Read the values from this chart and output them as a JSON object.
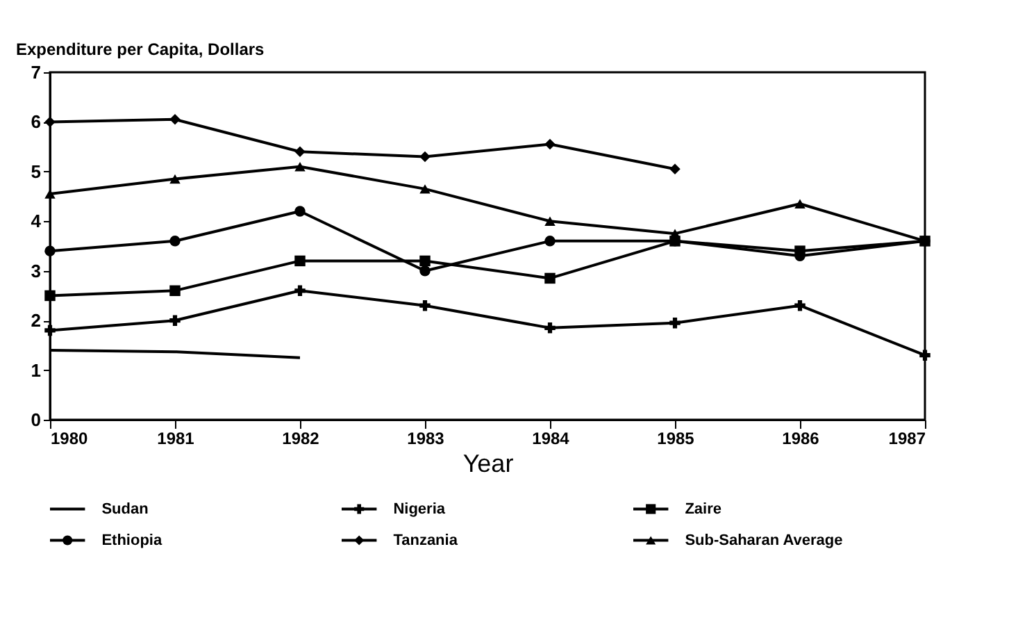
{
  "chart_data": {
    "type": "line",
    "ylabel": "Expenditure per Capita, Dollars",
    "xlabel": "Year",
    "x": [
      1980,
      1981,
      1982,
      1983,
      1984,
      1985,
      1986,
      1987
    ],
    "xlim": [
      1980,
      1987
    ],
    "xticks": [
      1980,
      1981,
      1982,
      1983,
      1984,
      1985,
      1986,
      1987
    ],
    "ylim": [
      0,
      7
    ],
    "yticks": [
      0,
      1,
      2,
      3,
      4,
      5,
      6,
      7
    ],
    "grid": false,
    "legend": "bottom",
    "series": [
      {
        "name": "Sudan",
        "color": "#000000",
        "marker": "none",
        "values": [
          1.4,
          1.37,
          1.25,
          null,
          null,
          null,
          null,
          null
        ]
      },
      {
        "name": "Nigeria",
        "color": "#000000",
        "marker": "cross",
        "values": [
          1.8,
          2.0,
          2.6,
          2.3,
          1.85,
          1.95,
          2.3,
          1.3
        ]
      },
      {
        "name": "Zaire",
        "color": "#000000",
        "marker": "square",
        "values": [
          2.5,
          2.6,
          3.2,
          3.2,
          2.85,
          3.6,
          3.4,
          3.6
        ]
      },
      {
        "name": "Ethiopia",
        "color": "#000000",
        "marker": "circle",
        "values": [
          3.4,
          3.6,
          4.2,
          3.0,
          3.6,
          3.6,
          3.3,
          3.6
        ]
      },
      {
        "name": "Tanzania",
        "color": "#000000",
        "marker": "diamond",
        "values": [
          6.0,
          6.05,
          5.4,
          5.3,
          5.55,
          5.05,
          null,
          null
        ]
      },
      {
        "name": "Sub-Saharan Average",
        "color": "#000000",
        "marker": "triangle",
        "values": [
          4.55,
          4.85,
          5.1,
          4.65,
          4.0,
          3.75,
          4.35,
          3.6
        ]
      }
    ]
  }
}
